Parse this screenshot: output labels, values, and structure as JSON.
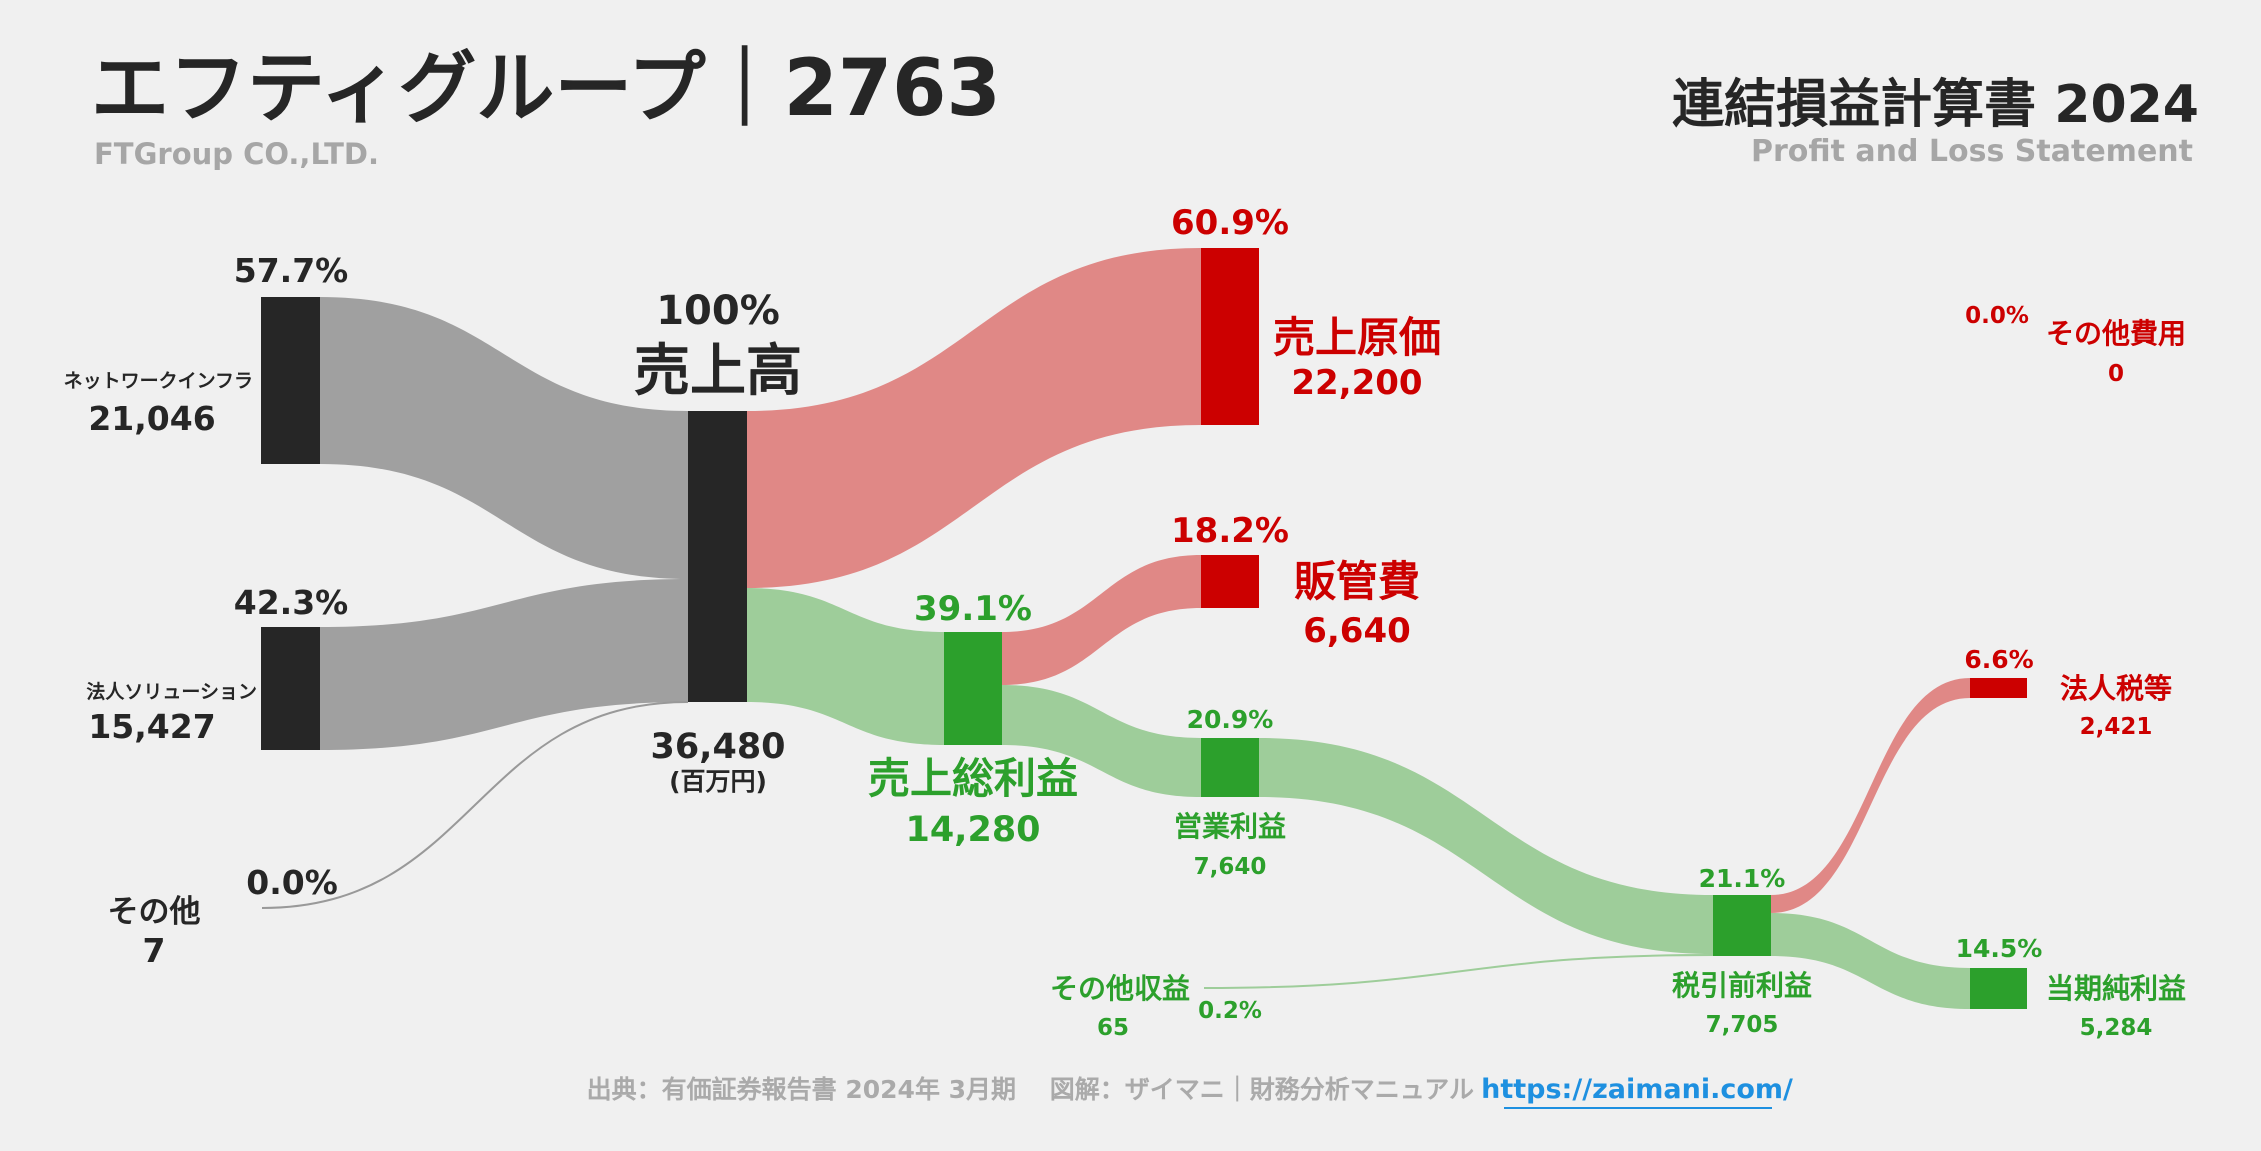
{
  "header": {
    "title": "エフティグループ｜2763",
    "subtitle": "FTGroup CO.,LTD.",
    "report_title": "連結損益計算書 2024",
    "report_subtitle": "Profit and Loss Statement"
  },
  "colors": {
    "background": "#f0f0f0",
    "neutral_bar": "#262626",
    "neutral_flow": "#a0a0a0",
    "cost_bar": "#cc0000",
    "cost_flow": "#e08886",
    "profit_bar": "#2ca02c",
    "profit_flow": "#9ecd9a"
  },
  "unit": "(百万円)",
  "nodes": {
    "network": {
      "label": "ネットワークインフラ",
      "value": "21,046",
      "pct": "57.7%"
    },
    "corporate": {
      "label": "法人ソリューション",
      "value": "15,427",
      "pct": "42.3%"
    },
    "other_rev": {
      "label": "その他",
      "value": "7",
      "pct": "0.0%"
    },
    "revenue": {
      "label": "売上高",
      "value": "36,480",
      "pct": "100%"
    },
    "cogs": {
      "label": "売上原価",
      "value": "22,200",
      "pct": "60.9%"
    },
    "sga": {
      "label": "販管費",
      "value": "6,640",
      "pct": "18.2%"
    },
    "gross": {
      "label": "売上総利益",
      "value": "14,280",
      "pct": "39.1%"
    },
    "operating": {
      "label": "営業利益",
      "value": "7,640",
      "pct": "20.9%"
    },
    "other_income": {
      "label": "その他収益",
      "value": "65",
      "pct": "0.2%"
    },
    "other_expense": {
      "label": "その他費用",
      "value": "0",
      "pct": "0.0%"
    },
    "pretax": {
      "label": "税引前利益",
      "value": "7,705",
      "pct": "21.1%"
    },
    "tax": {
      "label": "法人税等",
      "value": "2,421",
      "pct": "6.6%"
    },
    "net": {
      "label": "当期純利益",
      "value": "5,284",
      "pct": "14.5%"
    }
  },
  "footer": {
    "source": "出典：有価証券報告書 2024年 3月期　 図解：ザイマニ｜財務分析マニュアル",
    "url": "https://zaimani.com/"
  }
}
